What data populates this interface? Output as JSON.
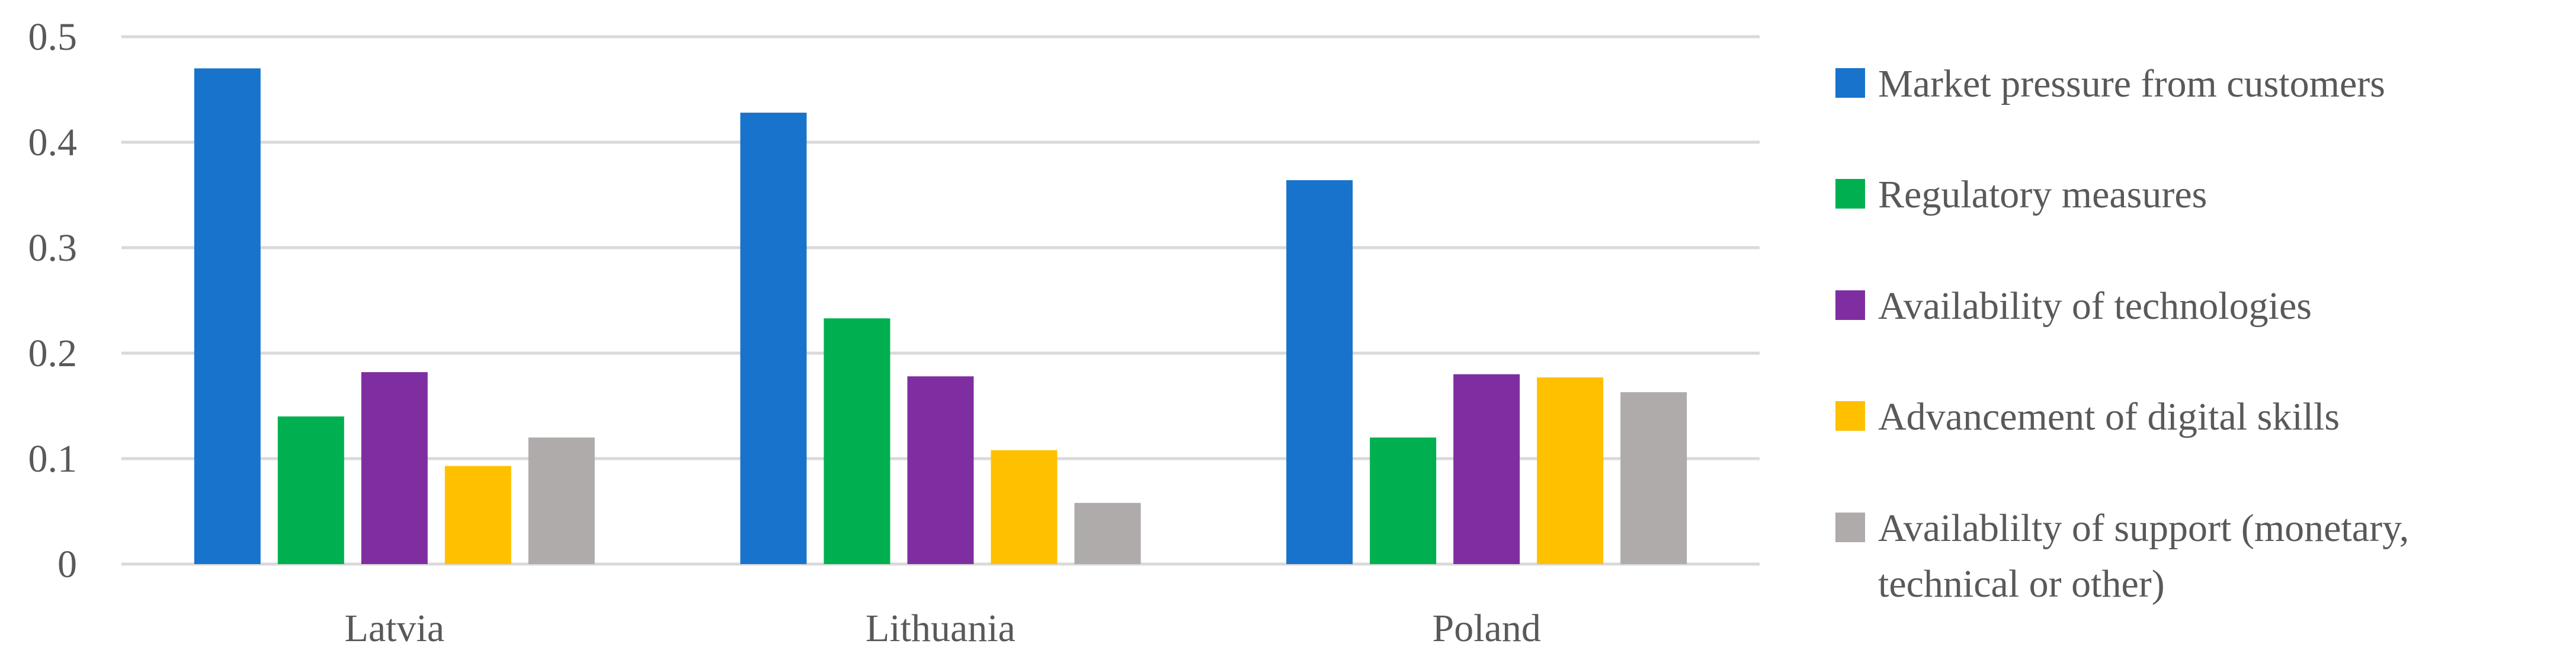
{
  "chart_data": {
    "type": "bar",
    "categories": [
      "Latvia",
      "Lithuania",
      "Poland"
    ],
    "series": [
      {
        "name": "Market pressure from customers",
        "color": "#1873CC",
        "values": [
          0.47,
          0.428,
          0.364
        ]
      },
      {
        "name": "Regulatory measures",
        "color": "#00B050",
        "values": [
          0.14,
          0.233,
          0.12
        ]
      },
      {
        "name": "Availability of technologies",
        "color": "#7F2EA1",
        "values": [
          0.182,
          0.178,
          0.18
        ]
      },
      {
        "name": "Advancement of digital skills",
        "color": "#FFC000",
        "values": [
          0.093,
          0.108,
          0.177
        ]
      },
      {
        "name": "Availablilty of support (monetary, technical or other)",
        "legend_lines": [
          "Availablilty of support (monetary,",
          "technical or other)"
        ],
        "color": "#AFABAB",
        "values": [
          0.12,
          0.058,
          0.163
        ]
      }
    ],
    "yticks": [
      "0",
      "0.1",
      "0.2",
      "0.3",
      "0.4",
      "0.5"
    ],
    "ylim": [
      0,
      0.5
    ],
    "grid": true,
    "legend_position": "right",
    "title": "",
    "xlabel": "",
    "ylabel": ""
  }
}
